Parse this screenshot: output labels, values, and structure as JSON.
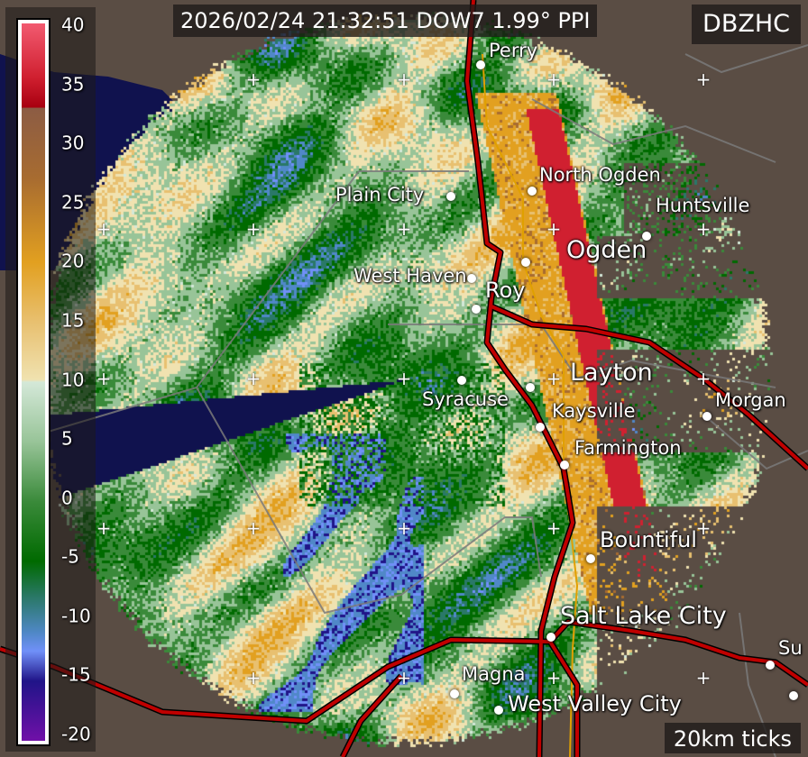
{
  "header": {
    "title": "2026/02/24 21:32:51 DOW7 1.99° PPI",
    "product": "DBZHC",
    "scale_note": "20km ticks"
  },
  "colorbar": {
    "labels": [
      "40",
      "35",
      "30",
      "25",
      "20",
      "15",
      "10",
      "5",
      "0",
      "-5",
      "-10",
      "-15",
      "-20"
    ],
    "range": [
      -20,
      40
    ],
    "units_field": "DBZHC",
    "stops": [
      {
        "v": 40,
        "c": "#f25a70"
      },
      {
        "v": 35.5,
        "c": "#d02030"
      },
      {
        "v": 33,
        "c": "#a80010"
      },
      {
        "v": 32.9,
        "c": "#8c5c44"
      },
      {
        "v": 27,
        "c": "#a86c30"
      },
      {
        "v": 20,
        "c": "#e2a020"
      },
      {
        "v": 15,
        "c": "#e8c070"
      },
      {
        "v": 10.2,
        "c": "#f0e2b0"
      },
      {
        "v": 10,
        "c": "#d4e8d8"
      },
      {
        "v": 5,
        "c": "#98c498"
      },
      {
        "v": 0,
        "c": "#3a8a3a"
      },
      {
        "v": -5,
        "c": "#006a00"
      },
      {
        "v": -8,
        "c": "#2a7868"
      },
      {
        "v": -11,
        "c": "#5088c8"
      },
      {
        "v": -12.5,
        "c": "#7090f8"
      },
      {
        "v": -15,
        "c": "#201488"
      },
      {
        "v": -20,
        "c": "#7010a8"
      }
    ]
  },
  "map_colors": {
    "land": "#5a4d44",
    "lake": "#10124e",
    "highway": "#c00000",
    "secondary_road": "#e0a000",
    "county_line": "#777777"
  },
  "cities": [
    {
      "name": "Perry"
    },
    {
      "name": "Plain City"
    },
    {
      "name": "North Ogden"
    },
    {
      "name": "Huntsville"
    },
    {
      "name": "Ogden"
    },
    {
      "name": "West Haven"
    },
    {
      "name": "Roy"
    },
    {
      "name": "Syracuse"
    },
    {
      "name": "Layton"
    },
    {
      "name": "Kaysville"
    },
    {
      "name": "Farmington"
    },
    {
      "name": "Morgan"
    },
    {
      "name": "Bountiful"
    },
    {
      "name": "Salt Lake City"
    },
    {
      "name": "Magna"
    },
    {
      "name": "West Valley City"
    },
    {
      "name": "Su"
    },
    {
      "name": ""
    }
  ]
}
